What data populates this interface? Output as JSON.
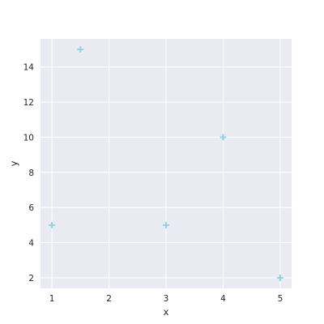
{
  "chart_data": {
    "type": "scatter",
    "title": "",
    "xlabel": "x",
    "ylabel": "y",
    "xlim": [
      0.8,
      5.2
    ],
    "ylim": [
      1.4,
      15.6
    ],
    "xticks": [
      1,
      2,
      3,
      4,
      5
    ],
    "xtick_labels": [
      "1",
      "2",
      "3",
      "4",
      "5"
    ],
    "yticks": [
      2,
      4,
      6,
      8,
      10,
      12,
      14
    ],
    "ytick_labels": [
      "2",
      "4",
      "6",
      "8",
      "10",
      "12",
      "14"
    ],
    "grid": true,
    "marker": "plus",
    "series": [
      {
        "x": [
          1,
          1.5,
          3,
          4,
          5
        ],
        "y": [
          5,
          15,
          5,
          10,
          2
        ],
        "color": "#8fd3e3"
      }
    ]
  },
  "style": {
    "plot_background": "#eaeaf2",
    "grid_color": "#ffffff",
    "text_color": "#262626"
  }
}
